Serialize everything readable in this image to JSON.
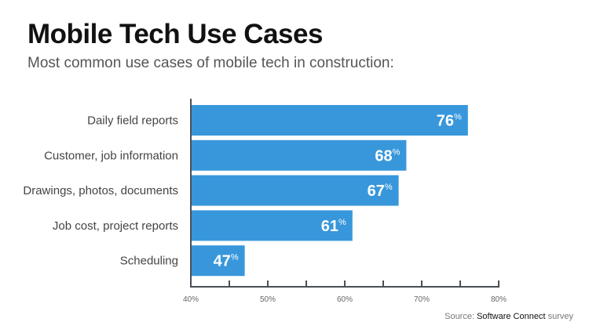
{
  "chart_data": {
    "type": "bar",
    "orientation": "horizontal",
    "title": "Mobile Tech Use Cases",
    "subtitle": "Most common use cases of mobile tech in construction:",
    "categories": [
      "Daily field reports",
      "Customer, job information",
      "Drawings, photos, documents",
      "Job cost, project reports",
      "Scheduling"
    ],
    "values": [
      76,
      68,
      67,
      61,
      47
    ],
    "value_suffix": "%",
    "xlim": [
      40,
      80
    ],
    "xticks": [
      "40%",
      "50%",
      "60%",
      "70%",
      "80%"
    ],
    "grid": false,
    "bar_color": "#3897db"
  },
  "source": {
    "prefix": "Source:",
    "name": "Software Connect",
    "suffix": "survey"
  }
}
